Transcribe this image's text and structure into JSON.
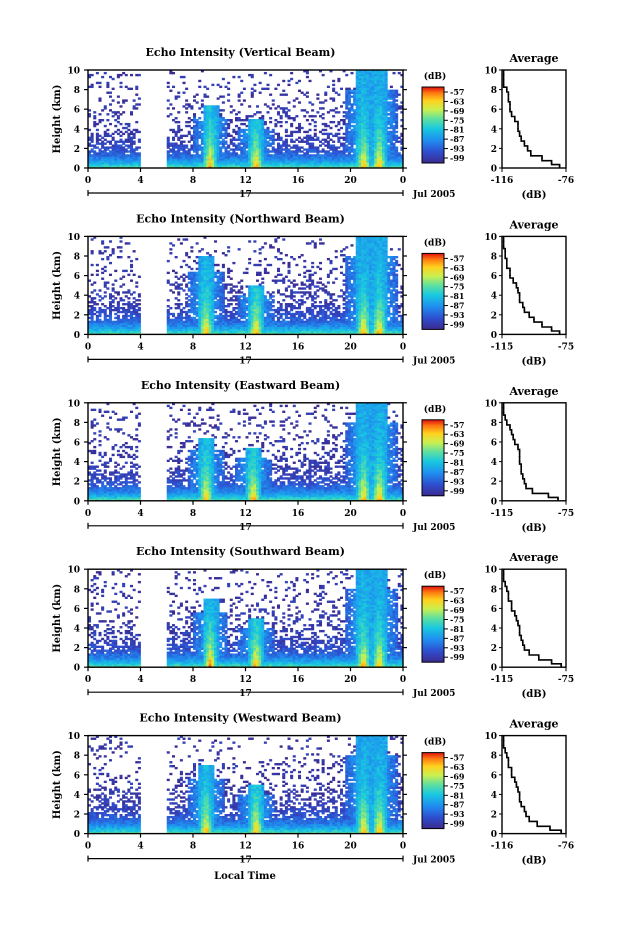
{
  "figure": {
    "xlabel": "Local Time",
    "date_label": "Jul 2005",
    "day_label": "17",
    "colorbar_unit": "(dB)",
    "avg_title": "Average",
    "avg_xlabel": "(dB)"
  },
  "chart_data": [
    {
      "type": "heatmap",
      "title": "Echo Intensity (Vertical Beam)",
      "ylabel": "Height (km)",
      "xlabel": "Local Time",
      "x_ticks": [
        "0",
        "4",
        "8",
        "12",
        "16",
        "20",
        "0"
      ],
      "xlim": [
        0,
        24
      ],
      "y_ticks": [
        "0",
        "2",
        "4",
        "6",
        "8",
        "10"
      ],
      "ylim": [
        0,
        10
      ],
      "colorbar": {
        "unit": "(dB)",
        "ticks": [
          "-57",
          "-63",
          "-69",
          "-75",
          "-81",
          "-87",
          "-93",
          "-99"
        ]
      },
      "data_gaps_hours": [
        [
          4.0,
          6.0
        ]
      ],
      "convective_cells": [
        {
          "center_hour": 9.3,
          "top_km": 6.5
        },
        {
          "center_hour": 12.8,
          "top_km": 5.0
        },
        {
          "center_hour": 21.0,
          "top_km": 10.0
        },
        {
          "center_hour": 22.2,
          "top_km": 10.0
        }
      ],
      "average_profile": {
        "title": "Average",
        "xlabel": "(dB)",
        "x_ticks": [
          "-116",
          "-76"
        ],
        "xlim": [
          -116,
          -76
        ],
        "y_ticks": [
          "0",
          "2",
          "4",
          "6",
          "8",
          "10"
        ],
        "height_km": [
          0.2,
          0.5,
          1,
          1.5,
          2,
          2.5,
          3,
          3.5,
          4,
          4.5,
          5,
          5.5,
          6,
          6.5,
          7,
          7.5,
          8,
          8.5,
          9,
          9.5
        ],
        "db": [
          -80,
          -85,
          -91,
          -98,
          -100,
          -102,
          -104,
          -105,
          -106,
          -106,
          -108,
          -110,
          -111,
          -111,
          -112,
          -112,
          -113,
          -115,
          -115,
          -115
        ]
      }
    },
    {
      "type": "heatmap",
      "title": "Echo Intensity (Northward Beam)",
      "ylabel": "Height (km)",
      "xlabel": "Local Time",
      "x_ticks": [
        "0",
        "4",
        "8",
        "12",
        "16",
        "20",
        "0"
      ],
      "xlim": [
        0,
        24
      ],
      "y_ticks": [
        "0",
        "2",
        "4",
        "6",
        "8",
        "10"
      ],
      "ylim": [
        0,
        10
      ],
      "colorbar": {
        "unit": "(dB)",
        "ticks": [
          "-57",
          "-63",
          "-69",
          "-75",
          "-81",
          "-87",
          "-93",
          "-99"
        ]
      },
      "data_gaps_hours": [
        [
          4.0,
          6.0
        ]
      ],
      "convective_cells": [
        {
          "center_hour": 9.0,
          "top_km": 8.0
        },
        {
          "center_hour": 12.8,
          "top_km": 5.0
        },
        {
          "center_hour": 21.0,
          "top_km": 10.0
        },
        {
          "center_hour": 22.2,
          "top_km": 10.0
        }
      ],
      "average_profile": {
        "title": "Average",
        "xlabel": "(dB)",
        "x_ticks": [
          "-115",
          "-75"
        ],
        "xlim": [
          -115,
          -75
        ],
        "y_ticks": [
          "0",
          "2",
          "4",
          "6",
          "8",
          "10"
        ],
        "height_km": [
          0.2,
          0.5,
          1,
          1.5,
          2,
          2.5,
          3,
          3.5,
          4,
          4.5,
          5,
          5.5,
          6,
          6.5,
          7,
          7.5,
          8,
          8.5,
          9,
          9.5
        ],
        "db": [
          -79,
          -84,
          -90,
          -95,
          -98,
          -101,
          -102,
          -104,
          -104,
          -105,
          -106,
          -108,
          -110,
          -110,
          -112,
          -112,
          -113,
          -113,
          -114,
          -114
        ]
      }
    },
    {
      "type": "heatmap",
      "title": "Echo Intensity (Eastward Beam)",
      "ylabel": "Height (km)",
      "xlabel": "Local Time",
      "x_ticks": [
        "0",
        "4",
        "8",
        "12",
        "16",
        "20",
        "0"
      ],
      "xlim": [
        0,
        24
      ],
      "y_ticks": [
        "0",
        "2",
        "4",
        "6",
        "8",
        "10"
      ],
      "ylim": [
        0,
        10
      ],
      "colorbar": {
        "unit": "(dB)",
        "ticks": [
          "-57",
          "-63",
          "-69",
          "-75",
          "-81",
          "-87",
          "-93",
          "-99"
        ]
      },
      "data_gaps_hours": [
        [
          4.0,
          6.0
        ]
      ],
      "convective_cells": [
        {
          "center_hour": 9.0,
          "top_km": 6.5
        },
        {
          "center_hour": 12.6,
          "top_km": 5.5
        },
        {
          "center_hour": 21.0,
          "top_km": 10.0
        },
        {
          "center_hour": 22.2,
          "top_km": 10.0
        }
      ],
      "average_profile": {
        "title": "Average",
        "xlabel": "(dB)",
        "x_ticks": [
          "-115",
          "-75"
        ],
        "xlim": [
          -115,
          -75
        ],
        "y_ticks": [
          "0",
          "2",
          "4",
          "6",
          "8",
          "10"
        ],
        "height_km": [
          0.2,
          0.5,
          1,
          1.5,
          2,
          2.5,
          3,
          3.5,
          4,
          4.5,
          5,
          5.5,
          6,
          6.5,
          7,
          7.5,
          8,
          8.5,
          9,
          9.5
        ],
        "db": [
          -80,
          -86,
          -96,
          -100,
          -101,
          -102,
          -103,
          -103,
          -104,
          -104,
          -104,
          -105,
          -107,
          -108,
          -109,
          -110,
          -112,
          -113,
          -114,
          -114
        ]
      }
    },
    {
      "type": "heatmap",
      "title": "Echo Intensity (Southward Beam)",
      "ylabel": "Height (km)",
      "xlabel": "Local Time",
      "x_ticks": [
        "0",
        "4",
        "8",
        "12",
        "16",
        "20",
        "0"
      ],
      "xlim": [
        0,
        24
      ],
      "y_ticks": [
        "0",
        "2",
        "4",
        "6",
        "8",
        "10"
      ],
      "ylim": [
        0,
        10
      ],
      "colorbar": {
        "unit": "(dB)",
        "ticks": [
          "-57",
          "-63",
          "-69",
          "-75",
          "-81",
          "-87",
          "-93",
          "-99"
        ]
      },
      "data_gaps_hours": [
        [
          4.0,
          6.0
        ]
      ],
      "convective_cells": [
        {
          "center_hour": 9.3,
          "top_km": 7.0
        },
        {
          "center_hour": 12.8,
          "top_km": 5.0
        },
        {
          "center_hour": 21.0,
          "top_km": 10.0
        },
        {
          "center_hour": 22.2,
          "top_km": 10.0
        }
      ],
      "average_profile": {
        "title": "Average",
        "xlabel": "(dB)",
        "x_ticks": [
          "-115",
          "-75"
        ],
        "xlim": [
          -115,
          -75
        ],
        "y_ticks": [
          "0",
          "2",
          "4",
          "6",
          "8",
          "10"
        ],
        "height_km": [
          0.2,
          0.5,
          1,
          1.5,
          2,
          2.5,
          3,
          3.5,
          4,
          4.5,
          5,
          5.5,
          6,
          6.5,
          7,
          7.5,
          8,
          8.5,
          9,
          9.5
        ],
        "db": [
          -78,
          -84,
          -92,
          -98,
          -101,
          -102,
          -103,
          -104,
          -104,
          -105,
          -106,
          -107,
          -109,
          -109,
          -111,
          -111,
          -112,
          -113,
          -114,
          -114
        ]
      }
    },
    {
      "type": "heatmap",
      "title": "Echo Intensity (Westward Beam)",
      "ylabel": "Height (km)",
      "xlabel": "Local Time",
      "x_ticks": [
        "0",
        "4",
        "8",
        "12",
        "16",
        "20",
        "0"
      ],
      "xlim": [
        0,
        24
      ],
      "y_ticks": [
        "0",
        "2",
        "4",
        "6",
        "8",
        "10"
      ],
      "ylim": [
        0,
        10
      ],
      "colorbar": {
        "unit": "(dB)",
        "ticks": [
          "-57",
          "-63",
          "-69",
          "-75",
          "-81",
          "-87",
          "-93",
          "-99"
        ]
      },
      "data_gaps_hours": [
        [
          4.0,
          6.0
        ]
      ],
      "convective_cells": [
        {
          "center_hour": 9.0,
          "top_km": 7.0
        },
        {
          "center_hour": 12.8,
          "top_km": 5.0
        },
        {
          "center_hour": 21.0,
          "top_km": 10.0
        },
        {
          "center_hour": 22.2,
          "top_km": 10.0
        }
      ],
      "average_profile": {
        "title": "Average",
        "xlabel": "(dB)",
        "x_ticks": [
          "-116",
          "-76"
        ],
        "xlim": [
          -116,
          -76
        ],
        "y_ticks": [
          "0",
          "2",
          "4",
          "6",
          "8",
          "10"
        ],
        "height_km": [
          0.2,
          0.5,
          1,
          1.5,
          2,
          2.5,
          3,
          3.5,
          4,
          4.5,
          5,
          5.5,
          6,
          6.5,
          7,
          7.5,
          8,
          8.5,
          9,
          9.5
        ],
        "db": [
          -79,
          -86,
          -94,
          -99,
          -101,
          -102,
          -104,
          -105,
          -105,
          -106,
          -107,
          -108,
          -110,
          -110,
          -112,
          -112,
          -113,
          -114,
          -115,
          -115
        ]
      }
    }
  ]
}
